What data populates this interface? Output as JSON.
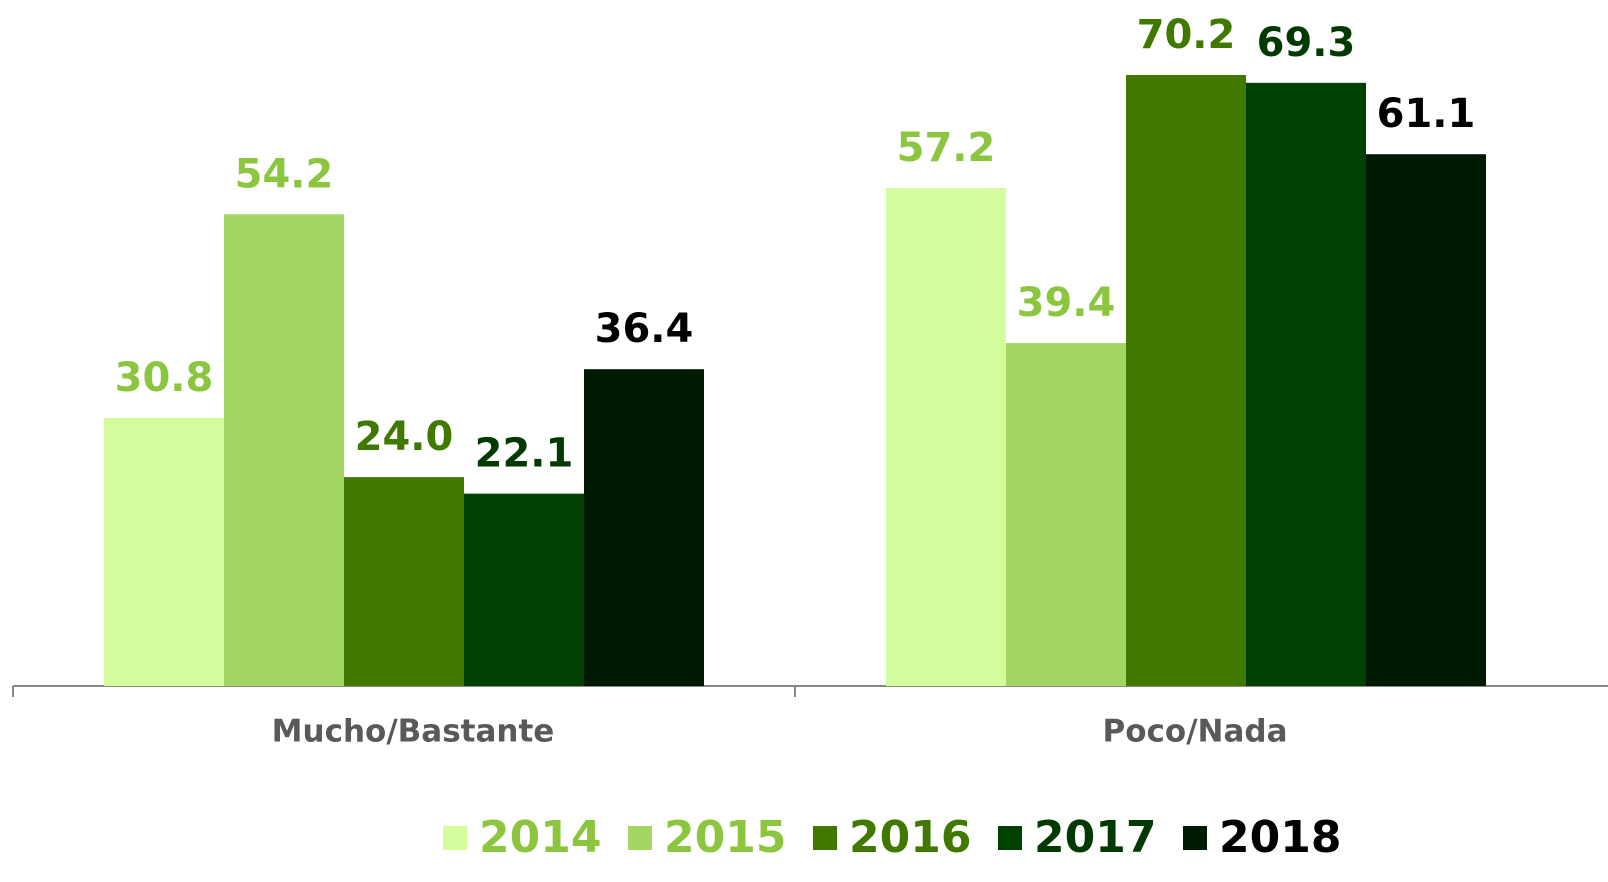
{
  "chart_data": {
    "type": "bar",
    "categories": [
      "Mucho/Bastante",
      "Poco/Nada"
    ],
    "series": [
      {
        "name": "2014",
        "color": "#d3fc9c",
        "label_color": "#8cc63f",
        "values": [
          30.8,
          57.2
        ],
        "value_labels": [
          "30.8",
          "57.2"
        ]
      },
      {
        "name": "2015",
        "color": "#a3d663",
        "label_color": "#8cc63f",
        "values": [
          54.2,
          39.4
        ],
        "value_labels": [
          "54.2",
          "39.4"
        ]
      },
      {
        "name": "2016",
        "color": "#407800",
        "label_color": "#407800",
        "values": [
          24.0,
          70.2
        ],
        "value_labels": [
          "24.0",
          "70.2"
        ]
      },
      {
        "name": "2017",
        "color": "#004000",
        "label_color": "#003a00",
        "values": [
          22.1,
          69.3
        ],
        "value_labels": [
          "22.1",
          "69.3"
        ]
      },
      {
        "name": "2018",
        "color": "#001a04",
        "label_color": "#000000",
        "values": [
          36.4,
          61.1
        ],
        "value_labels": [
          "36.4",
          "61.1"
        ]
      }
    ],
    "legend": "bottom"
  }
}
